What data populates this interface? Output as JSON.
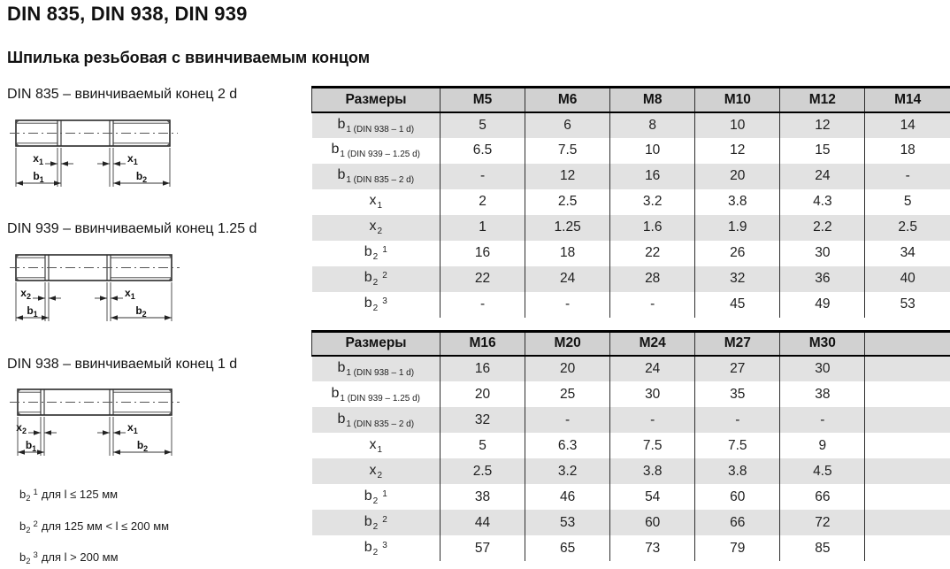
{
  "page": {
    "title": "DIN 835, DIN 938, DIN 939",
    "subtitle": "Шпилька резьбовая с ввинчиваемым концом"
  },
  "drawings": [
    {
      "id": "din835",
      "title": "DIN 835 – ввинчиваемый конец 2 d",
      "dims": {
        "left": {
          "base": "x",
          "sub": "1"
        },
        "right": {
          "base": "x",
          "sub": "1"
        },
        "b_left": {
          "base": "b",
          "sub": "1"
        },
        "b_right": {
          "base": "b",
          "sub": "2"
        }
      }
    },
    {
      "id": "din939",
      "title": "DIN 939 – ввинчиваемый конец 1.25 d",
      "dims": {
        "left": {
          "base": "x",
          "sub": "2"
        },
        "right": {
          "base": "x",
          "sub": "1"
        },
        "b_left": {
          "base": "b",
          "sub": "1"
        },
        "b_right": {
          "base": "b",
          "sub": "2"
        }
      }
    },
    {
      "id": "din938",
      "title": "DIN 938 – ввинчиваемый конец 1 d",
      "dims": {
        "left": {
          "base": "x",
          "sub": "2"
        },
        "right": {
          "base": "x",
          "sub": "1"
        },
        "b_left": {
          "base": "b",
          "sub": "1"
        },
        "b_right": {
          "base": "b",
          "sub": "2"
        }
      }
    }
  ],
  "footnotes": [
    {
      "base": "b",
      "sub": "2",
      "sup": "1",
      "text": "для l ≤ 125 мм"
    },
    {
      "base": "b",
      "sub": "2",
      "sup": "2",
      "text": "для 125 мм < l ≤ 200 мм"
    },
    {
      "base": "b",
      "sub": "2",
      "sup": "3",
      "text": "для l > 200 мм"
    }
  ],
  "tables": [
    {
      "header": {
        "label": "Размеры",
        "sizes": [
          "M5",
          "M6",
          "M8",
          "M10",
          "M12",
          "M14"
        ]
      },
      "rows": [
        {
          "label": {
            "base": "b",
            "sub": "1 (DIN 938 – 1 d)",
            "sup": ""
          },
          "values": [
            "5",
            "6",
            "8",
            "10",
            "12",
            "14"
          ]
        },
        {
          "label": {
            "base": "b",
            "sub": "1 (DIN 939 – 1.25 d)",
            "sup": ""
          },
          "values": [
            "6.5",
            "7.5",
            "10",
            "12",
            "15",
            "18"
          ]
        },
        {
          "label": {
            "base": "b",
            "sub": "1 (DIN 835 – 2 d)",
            "sup": ""
          },
          "values": [
            "-",
            "12",
            "16",
            "20",
            "24",
            "-"
          ]
        },
        {
          "label": {
            "base": "x",
            "sub": "1",
            "sup": ""
          },
          "values": [
            "2",
            "2.5",
            "3.2",
            "3.8",
            "4.3",
            "5"
          ]
        },
        {
          "label": {
            "base": "x",
            "sub": "2",
            "sup": ""
          },
          "values": [
            "1",
            "1.25",
            "1.6",
            "1.9",
            "2.2",
            "2.5"
          ]
        },
        {
          "label": {
            "base": "b",
            "sub": "2",
            "sup": "1"
          },
          "values": [
            "16",
            "18",
            "22",
            "26",
            "30",
            "34"
          ]
        },
        {
          "label": {
            "base": "b",
            "sub": "2",
            "sup": "2"
          },
          "values": [
            "22",
            "24",
            "28",
            "32",
            "36",
            "40"
          ]
        },
        {
          "label": {
            "base": "b",
            "sub": "2",
            "sup": "3"
          },
          "values": [
            "-",
            "-",
            "-",
            "45",
            "49",
            "53"
          ]
        }
      ]
    },
    {
      "header": {
        "label": "Размеры",
        "sizes": [
          "M16",
          "M20",
          "M24",
          "M27",
          "M30",
          ""
        ]
      },
      "rows": [
        {
          "label": {
            "base": "b",
            "sub": "1 (DIN 938 – 1 d)",
            "sup": ""
          },
          "values": [
            "16",
            "20",
            "24",
            "27",
            "30",
            ""
          ]
        },
        {
          "label": {
            "base": "b",
            "sub": "1 (DIN 939 – 1.25 d)",
            "sup": ""
          },
          "values": [
            "20",
            "25",
            "30",
            "35",
            "38",
            ""
          ]
        },
        {
          "label": {
            "base": "b",
            "sub": "1 (DIN 835 – 2 d)",
            "sup": ""
          },
          "values": [
            "32",
            "-",
            "-",
            "-",
            "-",
            ""
          ]
        },
        {
          "label": {
            "base": "x",
            "sub": "1",
            "sup": ""
          },
          "values": [
            "5",
            "6.3",
            "7.5",
            "7.5",
            "9",
            ""
          ]
        },
        {
          "label": {
            "base": "x",
            "sub": "2",
            "sup": ""
          },
          "values": [
            "2.5",
            "3.2",
            "3.8",
            "3.8",
            "4.5",
            ""
          ]
        },
        {
          "label": {
            "base": "b",
            "sub": "2",
            "sup": "1"
          },
          "values": [
            "38",
            "46",
            "54",
            "60",
            "66",
            ""
          ]
        },
        {
          "label": {
            "base": "b",
            "sub": "2",
            "sup": "2"
          },
          "values": [
            "44",
            "53",
            "60",
            "66",
            "72",
            ""
          ]
        },
        {
          "label": {
            "base": "b",
            "sub": "2",
            "sup": "3"
          },
          "values": [
            "57",
            "65",
            "73",
            "79",
            "85",
            ""
          ]
        }
      ]
    }
  ],
  "colors": {
    "header_bg": "#d1d1d1",
    "stripe_bg": "#e2e2e2",
    "border": "#000000"
  }
}
